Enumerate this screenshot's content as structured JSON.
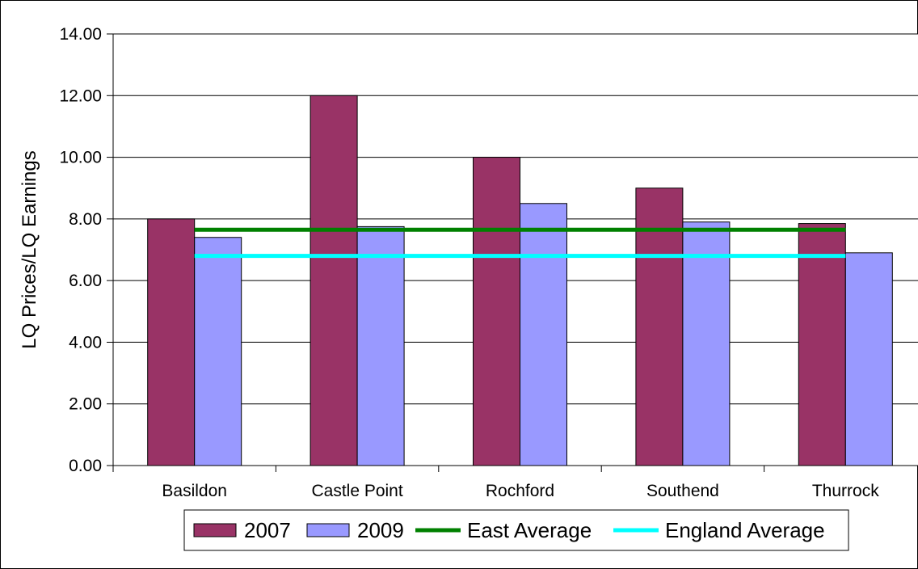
{
  "chart_data": {
    "type": "bar",
    "title": "",
    "xlabel": "",
    "ylabel": "LQ Prices/LQ Earnings",
    "ylim": [
      0,
      14
    ],
    "yticks": [
      "0.00",
      "2.00",
      "4.00",
      "6.00",
      "8.00",
      "10.00",
      "12.00",
      "14.00"
    ],
    "grid": true,
    "legend_position": "bottom",
    "categories": [
      "Basildon",
      "Castle Point",
      "Rochford",
      "Southend",
      "Thurrock"
    ],
    "series": [
      {
        "name": "2007",
        "kind": "bar",
        "color": "#993366",
        "values": [
          8.0,
          12.0,
          10.0,
          9.0,
          7.85
        ]
      },
      {
        "name": "2009",
        "kind": "bar",
        "color": "#9999ff",
        "values": [
          7.4,
          7.75,
          8.5,
          7.9,
          6.9
        ]
      },
      {
        "name": "East Average",
        "kind": "line",
        "color": "#008000",
        "value": 7.65
      },
      {
        "name": "England Average",
        "kind": "line",
        "color": "#00ffff",
        "value": 6.8
      }
    ]
  }
}
